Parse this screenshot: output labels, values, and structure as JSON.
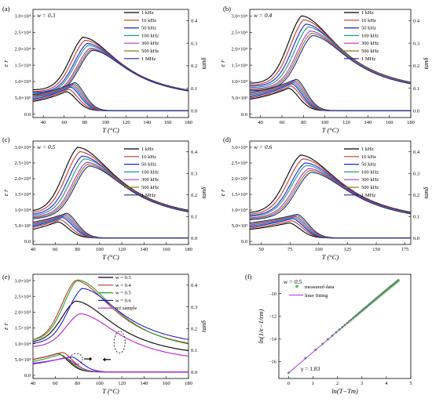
{
  "colors": {
    "1 kHz": "#000000",
    "10 kHz": "#c0392b",
    "50 kHz": "#1f1fd0",
    "100 kHz": "#1a9a8a",
    "300 kHz": "#b030c8",
    "500 kHz": "#8a7a20",
    "1 MHz": "#1c2a8c",
    "w = 0.3": "#000000",
    "w = 0.4": "#c0392b",
    "w = 0.5": "#2ca02c",
    "w = 0.6": "#1f1fd0",
    "ref sample": "#c020c8",
    "measured data": "#3ec93e",
    "liner fitting": "#b030e0"
  },
  "chart_data": [
    {
      "panel": "(a)",
      "type": "line",
      "annotation": "w = 0.3",
      "xlabel": "T (°C)",
      "ylabel": "ε r",
      "y2label": "tanδ",
      "xlim": [
        30,
        180
      ],
      "xticks": [
        "40",
        "60",
        "80",
        "100",
        "120",
        "140",
        "160",
        "180"
      ],
      "ylim": [
        -1000,
        32000
      ],
      "yticks": [
        "0.0",
        "5.0×10³",
        "1.0×10⁴",
        "1.5×10⁴",
        "2.0×10⁴",
        "2.5×10⁴",
        "3.0×10⁴"
      ],
      "y2lim": [
        -0.03,
        0.45
      ],
      "y2ticks": [
        "0.0",
        "0.1",
        "0.2",
        "0.3",
        "0.4"
      ],
      "legend": [
        "1 kHz",
        "10 kHz",
        "50 kHz",
        "100 kHz",
        "300 kHz",
        "500 kHz",
        "1 MHz"
      ],
      "eps_series": [
        {
          "name": "1 kHz",
          "Tm": 78,
          "peak": 23500,
          "base": 7500,
          "high": 4000
        },
        {
          "name": "10 kHz",
          "Tm": 80,
          "peak": 22600,
          "base": 7000,
          "high": 4000
        },
        {
          "name": "50 kHz",
          "Tm": 82,
          "peak": 21600,
          "base": 6700,
          "high": 4000
        },
        {
          "name": "100 kHz",
          "Tm": 83,
          "peak": 21000,
          "base": 6400,
          "high": 4000
        },
        {
          "name": "300 kHz",
          "Tm": 85,
          "peak": 20200,
          "base": 6100,
          "high": 4000
        },
        {
          "name": "500 kHz",
          "Tm": 86,
          "peak": 19800,
          "base": 5900,
          "high": 4000
        },
        {
          "name": "1 MHz",
          "Tm": 87,
          "peak": 19500,
          "base": 5700,
          "high": 4000
        }
      ],
      "tan_series": [
        {
          "name": "1 kHz",
          "Tp": 62,
          "base": 0.04,
          "peak": 0.085,
          "tail": 0.0
        },
        {
          "name": "10 kHz",
          "Tp": 64,
          "base": 0.045,
          "peak": 0.095,
          "tail": 0.0
        },
        {
          "name": "50 kHz",
          "Tp": 66,
          "base": 0.05,
          "peak": 0.105,
          "tail": 0.0
        },
        {
          "name": "100 kHz",
          "Tp": 67,
          "base": 0.055,
          "peak": 0.11,
          "tail": 0.0
        },
        {
          "name": "300 kHz",
          "Tp": 68,
          "base": 0.06,
          "peak": 0.115,
          "tail": 0.0
        },
        {
          "name": "500 kHz",
          "Tp": 69,
          "base": 0.065,
          "peak": 0.12,
          "tail": 0.0
        },
        {
          "name": "1 MHz",
          "Tp": 70,
          "base": 0.07,
          "peak": 0.125,
          "tail": 0.0
        }
      ]
    },
    {
      "panel": "(b)",
      "type": "line",
      "annotation": "w = 0.4",
      "xlabel": "T (°C)",
      "ylabel": "ε r",
      "y2label": "tanδ",
      "xlim": [
        30,
        180
      ],
      "xticks": [
        "40",
        "60",
        "80",
        "100",
        "120",
        "140",
        "160",
        "180"
      ],
      "ylim": [
        -1000,
        32000
      ],
      "yticks": [
        "0.0",
        "5.0×10³",
        "1.0×10⁴",
        "1.5×10⁴",
        "2.0×10⁴",
        "2.5×10⁴",
        "3.0×10⁴"
      ],
      "y2lim": [
        -0.03,
        0.45
      ],
      "y2ticks": [
        "0.0",
        "0.1",
        "0.2",
        "0.3",
        "0.4"
      ],
      "legend": [
        "1 kHz",
        "10 kHz",
        "50 kHz",
        "100 kHz",
        "300 kHz",
        "500 kHz",
        "1 MHz"
      ],
      "eps_series": [
        {
          "name": "1 kHz",
          "Tm": 78,
          "peak": 30000,
          "base": 9500,
          "high": 5500
        },
        {
          "name": "10 kHz",
          "Tm": 80,
          "peak": 28800,
          "base": 9000,
          "high": 5500
        },
        {
          "name": "50 kHz",
          "Tm": 82,
          "peak": 27500,
          "base": 8600,
          "high": 5500
        },
        {
          "name": "100 kHz",
          "Tm": 84,
          "peak": 26600,
          "base": 8200,
          "high": 5500
        },
        {
          "name": "300 kHz",
          "Tm": 86,
          "peak": 25400,
          "base": 7800,
          "high": 5500
        },
        {
          "name": "500 kHz",
          "Tm": 87,
          "peak": 24700,
          "base": 7500,
          "high": 5500
        },
        {
          "name": "1 MHz",
          "Tm": 88,
          "peak": 24000,
          "base": 7200,
          "high": 5500
        }
      ],
      "tan_series": [
        {
          "name": "1 kHz",
          "Tp": 66,
          "base": 0.05,
          "peak": 0.1,
          "tail": 0.0
        },
        {
          "name": "10 kHz",
          "Tp": 68,
          "base": 0.055,
          "peak": 0.11,
          "tail": 0.0
        },
        {
          "name": "50 kHz",
          "Tp": 69,
          "base": 0.06,
          "peak": 0.12,
          "tail": 0.0
        },
        {
          "name": "100 kHz",
          "Tp": 70,
          "base": 0.065,
          "peak": 0.125,
          "tail": 0.0
        },
        {
          "name": "300 kHz",
          "Tp": 71,
          "base": 0.07,
          "peak": 0.13,
          "tail": 0.0
        },
        {
          "name": "500 kHz",
          "Tp": 72,
          "base": 0.075,
          "peak": 0.135,
          "tail": 0.0
        },
        {
          "name": "1 MHz",
          "Tp": 73,
          "base": 0.08,
          "peak": 0.14,
          "tail": 0.0
        }
      ]
    },
    {
      "panel": "(c)",
      "type": "line",
      "annotation": "w = 0.5",
      "xlabel": "T (°C)",
      "ylabel": "ε r",
      "y2label": "tanδ",
      "xlim": [
        40,
        180
      ],
      "xticks": [
        "40",
        "60",
        "80",
        "100",
        "120",
        "140",
        "160",
        "180"
      ],
      "ylim": [
        -1000,
        32000
      ],
      "yticks": [
        "0.0",
        "5.0×10³",
        "1.0×10⁴",
        "1.5×10⁴",
        "2.0×10⁴",
        "2.5×10⁴",
        "3.0×10⁴"
      ],
      "y2lim": [
        -0.03,
        0.45
      ],
      "y2ticks": [
        "0.0",
        "0.1",
        "0.2",
        "0.3",
        "0.4"
      ],
      "legend": [
        "1 kHz",
        "10 kHz",
        "50 kHz",
        "100 kHz",
        "300 kHz",
        "500 kHz",
        "1 MHz"
      ],
      "eps_series": [
        {
          "name": "1 kHz",
          "Tm": 80,
          "peak": 30000,
          "base": 9500,
          "high": 5500
        },
        {
          "name": "10 kHz",
          "Tm": 82,
          "peak": 28600,
          "base": 9000,
          "high": 5500
        },
        {
          "name": "50 kHz",
          "Tm": 84,
          "peak": 27200,
          "base": 8500,
          "high": 5500
        },
        {
          "name": "100 kHz",
          "Tm": 86,
          "peak": 26300,
          "base": 8100,
          "high": 5500
        },
        {
          "name": "300 kHz",
          "Tm": 88,
          "peak": 25200,
          "base": 7700,
          "high": 5500
        },
        {
          "name": "500 kHz",
          "Tm": 89,
          "peak": 24600,
          "base": 7400,
          "high": 5500
        },
        {
          "name": "1 MHz",
          "Tm": 90,
          "peak": 24000,
          "base": 7100,
          "high": 5500
        }
      ],
      "tan_series": [
        {
          "name": "1 kHz",
          "Tp": 62,
          "base": 0.03,
          "peak": 0.075,
          "tail": 0.0
        },
        {
          "name": "10 kHz",
          "Tp": 64,
          "base": 0.04,
          "peak": 0.085,
          "tail": 0.0
        },
        {
          "name": "50 kHz",
          "Tp": 66,
          "base": 0.045,
          "peak": 0.095,
          "tail": 0.0
        },
        {
          "name": "100 kHz",
          "Tp": 67,
          "base": 0.05,
          "peak": 0.1,
          "tail": 0.0
        },
        {
          "name": "300 kHz",
          "Tp": 68,
          "base": 0.055,
          "peak": 0.105,
          "tail": 0.0
        },
        {
          "name": "500 kHz",
          "Tp": 69,
          "base": 0.06,
          "peak": 0.11,
          "tail": 0.0
        },
        {
          "name": "1 MHz",
          "Tp": 70,
          "base": 0.065,
          "peak": 0.115,
          "tail": 0.0
        }
      ]
    },
    {
      "panel": "(d)",
      "type": "line",
      "annotation": "w = 0.6",
      "xlabel": "T (°C)",
      "ylabel": "ε r",
      "y2label": "tanδ",
      "xlim": [
        40,
        180
      ],
      "xticks": [
        "50",
        "75",
        "100",
        "125",
        "150",
        "175"
      ],
      "ylim": [
        -1000,
        32000
      ],
      "yticks": [
        "0.0",
        "5.0×10³",
        "1.0×10⁴",
        "1.5×10⁴",
        "2.0×10⁴",
        "2.5×10⁴",
        "3.0×10⁴"
      ],
      "y2lim": [
        -0.03,
        0.45
      ],
      "y2ticks": [
        "0.0",
        "0.1",
        "0.2",
        "0.3",
        "0.4"
      ],
      "legend": [
        "1 kHz",
        "10 kHz",
        "50 kHz",
        "100 kHz",
        "300 kHz",
        "500 kHz",
        "1 MHz"
      ],
      "eps_series": [
        {
          "name": "1 kHz",
          "Tm": 84,
          "peak": 27500,
          "base": 9000,
          "high": 5000
        },
        {
          "name": "10 kHz",
          "Tm": 86,
          "peak": 26300,
          "base": 8500,
          "high": 5000
        },
        {
          "name": "50 kHz",
          "Tm": 88,
          "peak": 25000,
          "base": 8100,
          "high": 5000
        },
        {
          "name": "100 kHz",
          "Tm": 89,
          "peak": 24200,
          "base": 7800,
          "high": 5000
        },
        {
          "name": "300 kHz",
          "Tm": 91,
          "peak": 23200,
          "base": 7400,
          "high": 5000
        },
        {
          "name": "500 kHz",
          "Tm": 92,
          "peak": 22600,
          "base": 7100,
          "high": 5000
        },
        {
          "name": "1 MHz",
          "Tm": 93,
          "peak": 22000,
          "base": 6800,
          "high": 5000
        }
      ],
      "tan_series": [
        {
          "name": "1 kHz",
          "Tp": 74,
          "base": 0.035,
          "peak": 0.07,
          "tail": 0.0
        },
        {
          "name": "10 kHz",
          "Tp": 76,
          "base": 0.04,
          "peak": 0.08,
          "tail": 0.0
        },
        {
          "name": "50 kHz",
          "Tp": 77,
          "base": 0.045,
          "peak": 0.09,
          "tail": 0.0
        },
        {
          "name": "100 kHz",
          "Tp": 78,
          "base": 0.05,
          "peak": 0.095,
          "tail": 0.0
        },
        {
          "name": "300 kHz",
          "Tp": 79,
          "base": 0.055,
          "peak": 0.1,
          "tail": 0.0
        },
        {
          "name": "500 kHz",
          "Tp": 80,
          "base": 0.06,
          "peak": 0.105,
          "tail": 0.0
        },
        {
          "name": "1 MHz",
          "Tp": 81,
          "base": 0.065,
          "peak": 0.11,
          "tail": 0.0
        }
      ]
    },
    {
      "panel": "(e)",
      "type": "line",
      "annotation": "",
      "xlabel": "T (°C)",
      "ylabel": "ε r",
      "y2label": "tanδ",
      "xlim": [
        40,
        180
      ],
      "xticks": [
        "40",
        "60",
        "80",
        "100",
        "120",
        "140",
        "160",
        "180"
      ],
      "ylim": [
        -1000,
        32000
      ],
      "yticks": [
        "0.0",
        "5.0×10³",
        "1.0×10⁴",
        "1.5×10⁴",
        "2.0×10⁴",
        "2.5×10⁴",
        "3.0×10⁴"
      ],
      "y2lim": [
        -0.03,
        0.45
      ],
      "y2ticks": [
        "0.0",
        "0.1",
        "0.2",
        "0.3",
        "0.4"
      ],
      "legend": [
        "w = 0.3",
        "w = 0.4",
        "w = 0.5",
        "w = 0.6",
        "ref sample"
      ],
      "eps_series": [
        {
          "name": "w = 0.3",
          "Tm": 78,
          "peak": 23500,
          "base": 10500,
          "high": 4500
        },
        {
          "name": "w = 0.4",
          "Tm": 78,
          "peak": 30000,
          "base": 11000,
          "high": 6000
        },
        {
          "name": "w = 0.5",
          "Tm": 80,
          "peak": 30200,
          "base": 11000,
          "high": 5500
        },
        {
          "name": "w = 0.6",
          "Tm": 84,
          "peak": 27500,
          "base": 10000,
          "high": 7500
        },
        {
          "name": "ref sample",
          "Tm": 82,
          "peak": 19500,
          "base": 9000,
          "high": 3000
        }
      ],
      "tan_series": [
        {
          "name": "w = 0.3",
          "Tp": 62,
          "base": 0.05,
          "peak": 0.085,
          "tail": 0.0
        },
        {
          "name": "w = 0.4",
          "Tp": 66,
          "base": 0.05,
          "peak": 0.09,
          "tail": 0.0
        },
        {
          "name": "w = 0.5",
          "Tp": 64,
          "base": 0.04,
          "peak": 0.08,
          "tail": 0.0
        },
        {
          "name": "w = 0.6",
          "Tp": 74,
          "base": 0.035,
          "peak": 0.07,
          "tail": 0.0
        },
        {
          "name": "ref sample",
          "Tp": 68,
          "base": 0.03,
          "peak": 0.065,
          "tail": 0.0
        }
      ]
    },
    {
      "panel": "(f)",
      "type": "scatter",
      "annotation": "w = 0.5",
      "fit_label": "γ = 1.83",
      "xlabel": "ln(T−Tm)",
      "ylabel": "ln(1/ε−1/εm)",
      "xlim": [
        -0.4,
        5
      ],
      "xticks": [
        "0",
        "1",
        "2",
        "3",
        "4",
        "5"
      ],
      "ylim": [
        -17.5,
        -8.3
      ],
      "yticks": [
        "-16",
        "-14",
        "-12",
        "-10"
      ],
      "legend": [
        "measured data",
        "liner fitting"
      ],
      "measured": {
        "x": [
          0.0,
          0.69,
          1.1,
          1.39,
          1.61,
          1.79,
          1.95,
          2.08,
          2.2,
          2.3,
          2.4,
          2.48,
          2.56,
          2.64,
          2.71,
          2.77,
          2.83,
          2.89,
          2.94,
          3.0,
          3.04,
          3.09,
          3.14,
          3.18,
          3.22,
          3.26,
          3.3,
          3.33,
          3.37,
          3.4,
          3.43,
          3.47,
          3.5,
          3.53,
          3.56,
          3.58,
          3.61,
          3.64,
          3.66,
          3.69,
          3.71,
          3.74,
          3.76,
          3.78,
          3.81,
          3.83,
          3.85,
          3.87,
          3.89,
          3.91,
          3.93,
          3.95,
          3.97,
          3.99,
          4.01,
          4.03,
          4.04,
          4.06,
          4.08,
          4.09,
          4.11,
          4.13,
          4.14,
          4.16,
          4.17,
          4.19,
          4.2,
          4.22,
          4.23,
          4.25,
          4.26,
          4.27,
          4.29,
          4.3,
          4.32,
          4.33,
          4.34,
          4.36,
          4.37,
          4.38,
          4.39,
          4.41,
          4.42,
          4.43,
          4.44,
          4.45,
          4.47,
          4.48,
          4.49,
          4.5
        ],
        "y": [
          -17.0,
          -15.7,
          -14.97,
          -14.44,
          -14.04,
          -13.71,
          -13.42,
          -13.18,
          -12.97,
          -12.79,
          -12.61,
          -12.46,
          -12.32,
          -12.17,
          -12.04,
          -11.94,
          -11.83,
          -11.72,
          -11.63,
          -11.52,
          -11.45,
          -11.36,
          -11.27,
          -11.2,
          -11.12,
          -11.05,
          -10.98,
          -10.92,
          -10.85,
          -10.8,
          -10.74,
          -10.67,
          -10.62,
          -10.56,
          -10.51,
          -10.47,
          -10.42,
          -10.36,
          -10.33,
          -10.27,
          -10.24,
          -10.19,
          -10.15,
          -10.11,
          -10.06,
          -10.03,
          -9.99,
          -9.95,
          -9.92,
          -9.88,
          -9.85,
          -9.81,
          -9.77,
          -9.74,
          -9.7,
          -9.67,
          -9.65,
          -9.61,
          -9.58,
          -9.56,
          -9.52,
          -9.49,
          -9.47,
          -9.43,
          -9.41,
          -9.38,
          -9.36,
          -9.33,
          -9.31,
          -9.28,
          -9.26,
          -9.24,
          -9.21,
          -9.19,
          -9.15,
          -9.13,
          -9.11,
          -9.08,
          -9.06,
          -9.04,
          -9.02,
          -9.0,
          -8.98,
          -8.96,
          -8.94,
          -8.92,
          -8.89,
          -8.87,
          -8.85,
          -8.84
        ]
      },
      "fit": {
        "slope": 1.83,
        "intercept": -17.0,
        "xrange": [
          0.0,
          4.5
        ]
      }
    }
  ]
}
